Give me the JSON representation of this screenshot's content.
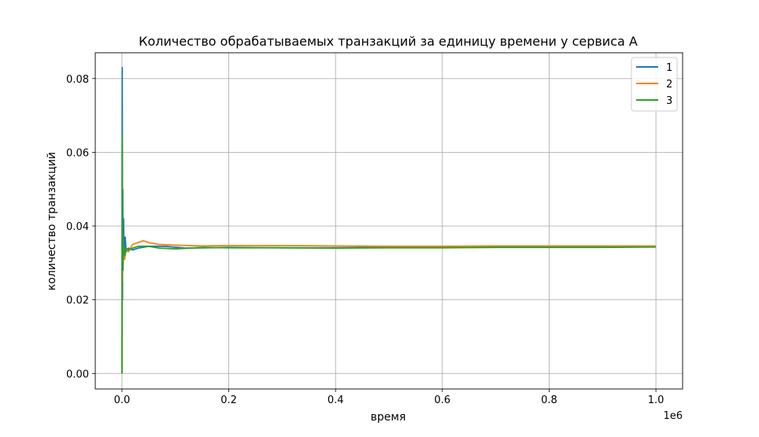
{
  "chart_data": {
    "type": "line",
    "title": "Количество обрабатываемых транзакций за единицу времени у сервиса А",
    "xlabel": "время",
    "ylabel": "количество транзакций",
    "x_offset_label": "1e6",
    "xlim": [
      -0.05,
      1.05
    ],
    "ylim": [
      -0.0042,
      0.087
    ],
    "x_ticks": [
      0.0,
      0.2,
      0.4,
      0.6,
      0.8,
      1.0
    ],
    "x_tick_labels": [
      "0.0",
      "0.2",
      "0.4",
      "0.6",
      "0.8",
      "1.0"
    ],
    "y_ticks": [
      0.0,
      0.02,
      0.04,
      0.06,
      0.08
    ],
    "y_tick_labels": [
      "0.00",
      "0.02",
      "0.04",
      "0.06",
      "0.08"
    ],
    "grid": true,
    "legend_position": "top-right",
    "series": [
      {
        "name": "1",
        "color": "#1f77b4",
        "x": [
          0.0,
          0.0005,
          0.001,
          0.0015,
          0.002,
          0.003,
          0.004,
          0.006,
          0.008,
          0.012,
          0.02,
          0.03,
          0.05,
          0.08,
          0.12,
          0.2,
          0.3,
          0.4,
          0.5,
          0.6,
          0.7,
          0.8,
          0.9,
          1.0
        ],
        "values": [
          0.0,
          0.083,
          0.02,
          0.05,
          0.028,
          0.042,
          0.031,
          0.037,
          0.033,
          0.034,
          0.0335,
          0.034,
          0.0345,
          0.0345,
          0.034,
          0.0342,
          0.0341,
          0.0341,
          0.0342,
          0.0343,
          0.0343,
          0.0344,
          0.0344,
          0.0344
        ]
      },
      {
        "name": "2",
        "color": "#ff7f0e",
        "x": [
          0.0,
          0.0005,
          0.001,
          0.0015,
          0.002,
          0.003,
          0.005,
          0.008,
          0.012,
          0.02,
          0.03,
          0.04,
          0.05,
          0.07,
          0.1,
          0.15,
          0.2,
          0.3,
          0.4,
          0.5,
          0.6,
          0.7,
          0.8,
          0.9,
          1.0
        ],
        "values": [
          0.0,
          0.04,
          0.025,
          0.036,
          0.03,
          0.034,
          0.031,
          0.034,
          0.033,
          0.035,
          0.0355,
          0.036,
          0.0355,
          0.035,
          0.0348,
          0.0346,
          0.0347,
          0.0347,
          0.0346,
          0.0345,
          0.0345,
          0.0346,
          0.0346,
          0.0346,
          0.0346
        ]
      },
      {
        "name": "3",
        "color": "#2ca02c",
        "x": [
          0.0,
          0.0005,
          0.001,
          0.0015,
          0.002,
          0.003,
          0.005,
          0.008,
          0.012,
          0.02,
          0.03,
          0.05,
          0.07,
          0.1,
          0.15,
          0.2,
          0.3,
          0.4,
          0.5,
          0.6,
          0.7,
          0.8,
          0.9,
          1.0
        ],
        "values": [
          0.0,
          0.065,
          0.028,
          0.038,
          0.03,
          0.035,
          0.032,
          0.034,
          0.0335,
          0.034,
          0.0345,
          0.0345,
          0.034,
          0.0338,
          0.0342,
          0.0341,
          0.0341,
          0.034,
          0.0341,
          0.0341,
          0.0342,
          0.0342,
          0.0342,
          0.0343
        ]
      }
    ]
  }
}
